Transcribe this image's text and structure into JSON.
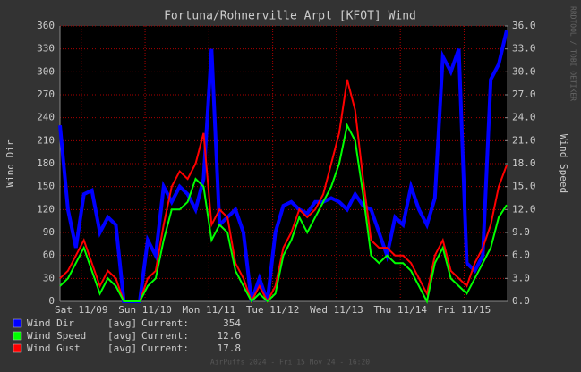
{
  "chart_data": {
    "type": "line",
    "title": "Fortuna/Rohnerville Arpt [KFOT] Wind",
    "y_label": "Wind Dir",
    "y2_label": "Wind Speed",
    "watermark": "RRDTOOL / TOBI OETIKER",
    "footer": "AirPuffs 2024 - Fri 15 Nov 24 - 16:20",
    "legend_stat": "[avg]",
    "legend_current": "Current:",
    "x": [
      0,
      3,
      6,
      9,
      12,
      15,
      18,
      21,
      24,
      27,
      30,
      33,
      36,
      39,
      42,
      45,
      48,
      51,
      54,
      57,
      60,
      63,
      66,
      69,
      72,
      75,
      78,
      81,
      84,
      87,
      90,
      93,
      96,
      99,
      102,
      105,
      108,
      111,
      114,
      117,
      120,
      123,
      126,
      129,
      132,
      135,
      138,
      141,
      144,
      147,
      150,
      153,
      156,
      159,
      162,
      165,
      168
    ],
    "xlim": [
      0,
      168
    ],
    "xticks": [
      {
        "value": 8,
        "label": "Sat 11/09"
      },
      {
        "value": 32,
        "label": "Sun 11/10"
      },
      {
        "value": 56,
        "label": "Mon 11/11"
      },
      {
        "value": 80,
        "label": "Tue 11/12"
      },
      {
        "value": 104,
        "label": "Wed 11/13"
      },
      {
        "value": 128,
        "label": "Thu 11/14"
      },
      {
        "value": 152,
        "label": "Fri 11/15"
      }
    ],
    "ylim": [
      0,
      360
    ],
    "yticks": [
      0,
      30,
      60,
      90,
      120,
      150,
      180,
      210,
      240,
      270,
      300,
      330,
      360
    ],
    "y2lim": [
      0,
      36
    ],
    "y2ticks": [
      {
        "value": 0,
        "label": "0.0"
      },
      {
        "value": 3,
        "label": "3.0"
      },
      {
        "value": 6,
        "label": "6.0"
      },
      {
        "value": 9,
        "label": "9.0"
      },
      {
        "value": 12,
        "label": "12.0"
      },
      {
        "value": 15,
        "label": "15.0"
      },
      {
        "value": 18,
        "label": "18.0"
      },
      {
        "value": 21,
        "label": "21.0"
      },
      {
        "value": 24,
        "label": "24.0"
      },
      {
        "value": 27,
        "label": "27.0"
      },
      {
        "value": 30,
        "label": "30.0"
      },
      {
        "value": 33,
        "label": "33.0"
      },
      {
        "value": 36,
        "label": "36.0"
      }
    ],
    "grid": true,
    "series": [
      {
        "name": "Wind Dir",
        "color": "#0000ff",
        "axis": "y",
        "values": [
          230,
          120,
          70,
          140,
          145,
          90,
          110,
          100,
          0,
          0,
          0,
          80,
          60,
          150,
          130,
          150,
          140,
          120,
          160,
          330,
          100,
          110,
          120,
          90,
          0,
          30,
          0,
          90,
          125,
          130,
          120,
          115,
          130,
          130,
          135,
          130,
          120,
          140,
          125,
          120,
          90,
          60,
          110,
          100,
          150,
          120,
          100,
          135,
          320,
          300,
          330,
          50,
          40,
          60,
          290,
          310,
          354
        ]
      },
      {
        "name": "Wind Gust",
        "color": "#ff0000",
        "axis": "y2",
        "values": [
          3,
          4,
          6,
          8,
          5,
          2,
          4,
          3,
          0,
          0,
          0,
          3,
          4,
          10,
          15,
          17,
          16,
          18,
          22,
          10,
          12,
          11,
          5,
          3,
          0,
          2,
          0,
          2,
          7,
          9,
          12,
          11,
          12,
          14,
          18,
          22,
          29,
          25,
          16,
          8,
          7,
          7,
          6,
          6,
          5,
          3,
          1,
          6,
          8,
          4,
          3,
          2,
          5,
          7,
          10,
          15,
          17.8
        ]
      },
      {
        "name": "Wind Speed",
        "color": "#00ff00",
        "axis": "y2",
        "values": [
          2,
          3,
          5,
          7,
          4,
          1,
          3,
          2,
          0,
          0,
          0,
          2,
          3,
          8,
          12,
          12,
          13,
          16,
          15,
          8,
          10,
          9,
          4,
          2,
          0,
          1,
          0,
          1,
          6,
          8,
          11,
          9,
          11,
          13,
          15,
          18,
          23,
          21,
          14,
          6,
          5,
          6,
          5,
          5,
          4,
          2,
          0,
          5,
          7,
          3,
          2,
          1,
          3,
          5,
          7,
          11,
          12.6
        ]
      }
    ],
    "legend_order": [
      0,
      2,
      1
    ]
  }
}
